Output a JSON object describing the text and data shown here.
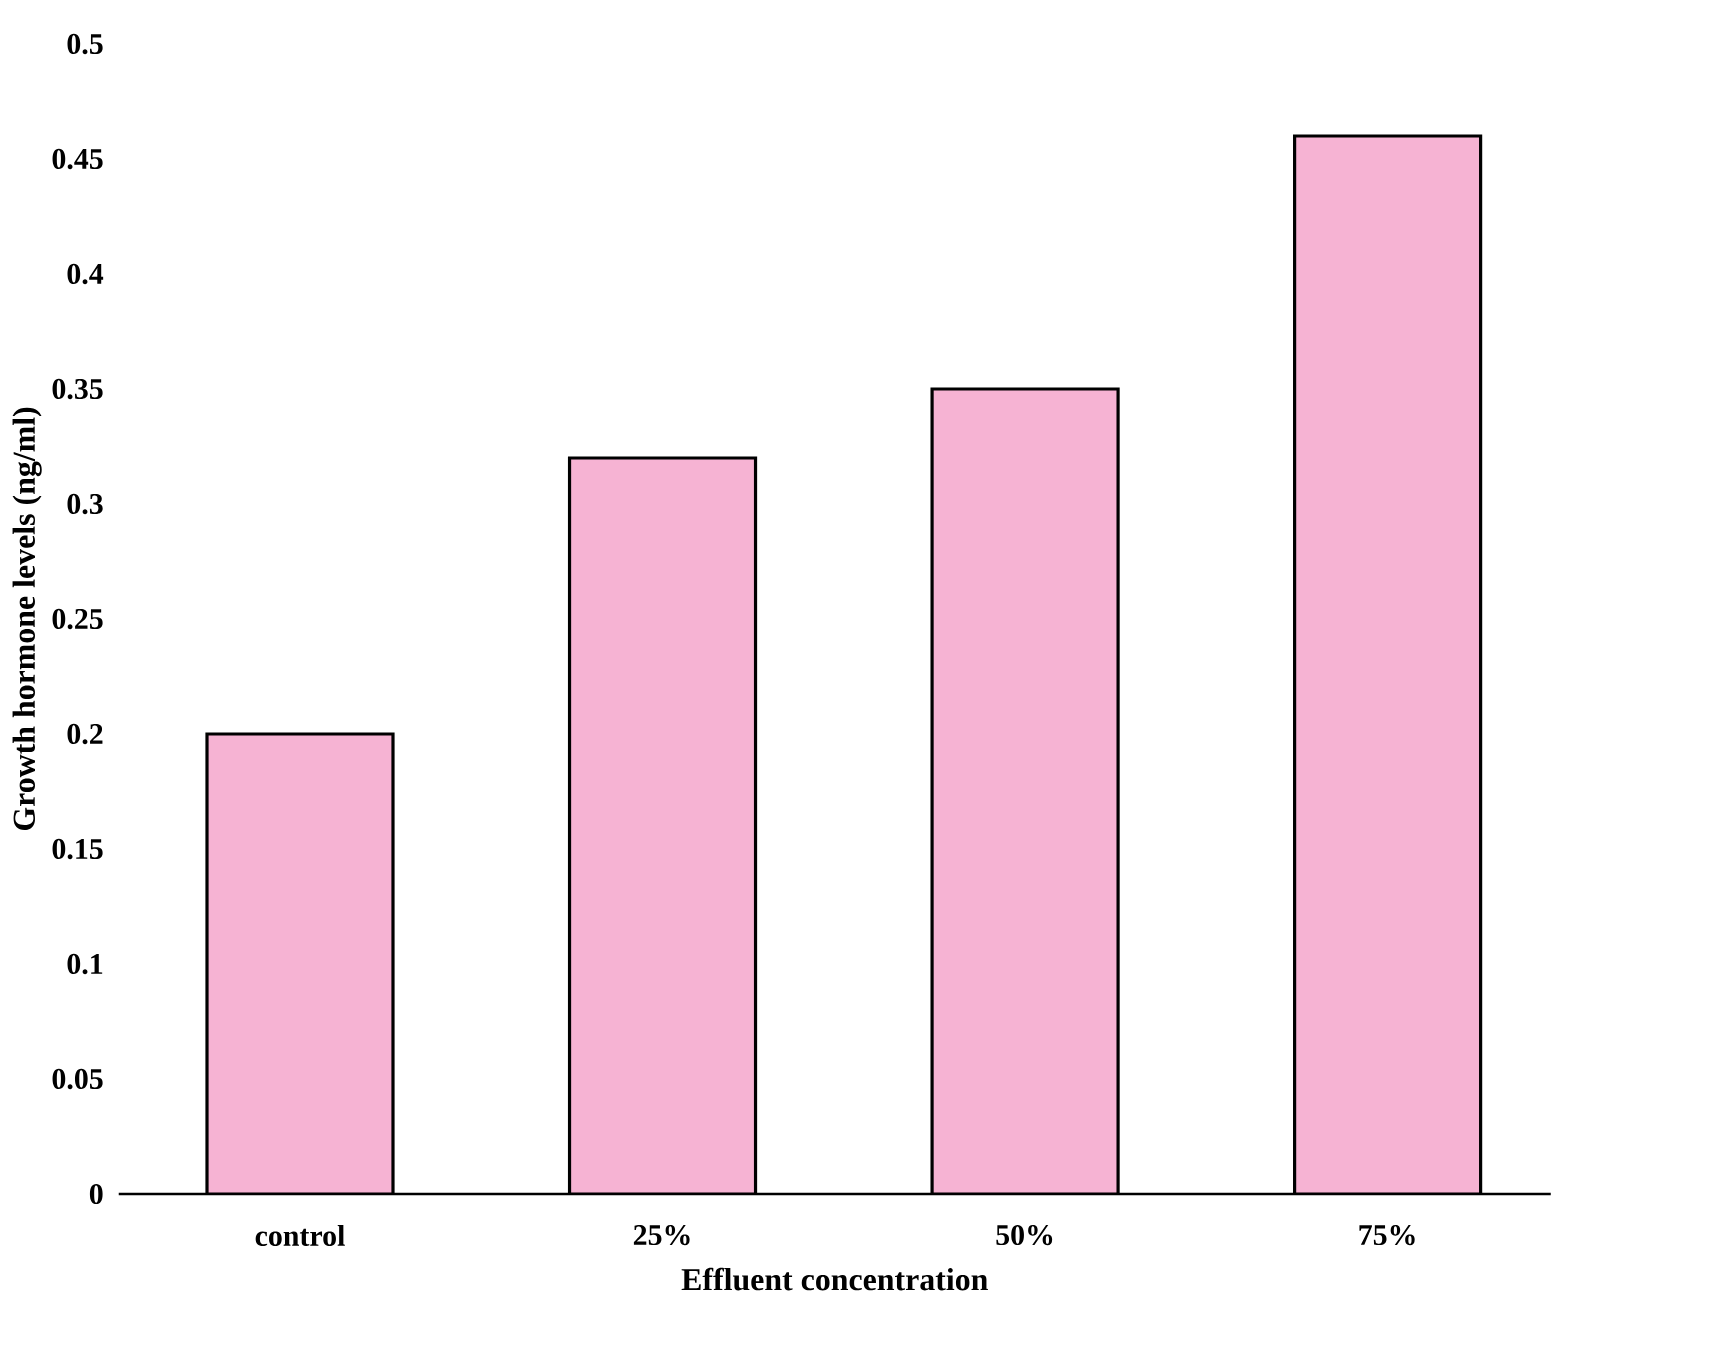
{
  "chart_data": {
    "type": "bar",
    "xlabel": "Effluent concentration",
    "ylabel": "Growth hormone levels (ng/ml)",
    "categories": [
      "control",
      "25%",
      "50%",
      "75%"
    ],
    "values": [
      0.2,
      0.32,
      0.35,
      0.46
    ],
    "color": "#f6b3d3",
    "ylim": [
      0,
      0.5
    ],
    "yticks": [
      0,
      0.05,
      0.1,
      0.15,
      0.2,
      0.25,
      0.3,
      0.35,
      0.4,
      0.45,
      0.5
    ]
  }
}
